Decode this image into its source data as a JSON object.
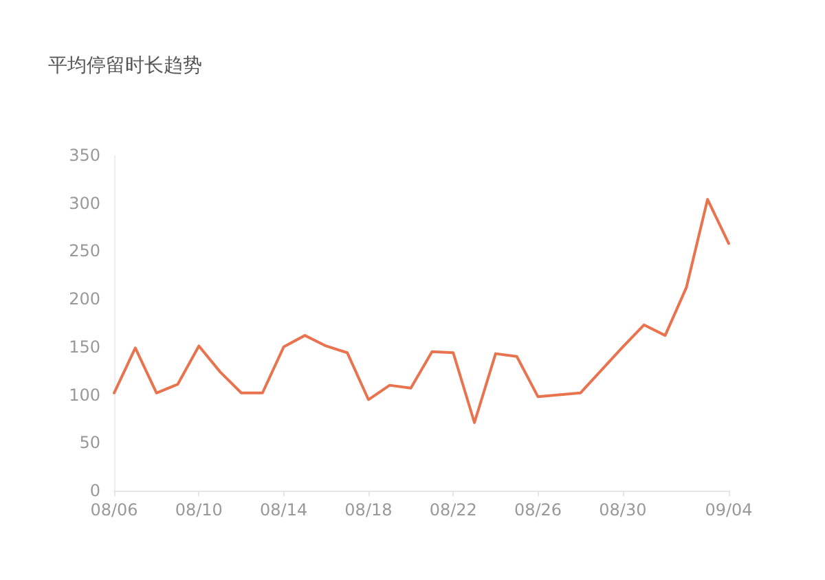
{
  "chart_data": {
    "type": "line",
    "title": "平均停留时长趋势",
    "categories": [
      "08/06",
      null,
      null,
      null,
      "08/10",
      null,
      null,
      null,
      "08/14",
      null,
      null,
      null,
      "08/18",
      null,
      null,
      null,
      "08/22",
      null,
      null,
      null,
      "08/26",
      null,
      null,
      null,
      "08/30",
      null,
      null,
      null,
      null,
      "09/04"
    ],
    "series": [
      {
        "color": "#e8734f",
        "values": [
          102,
          149,
          102,
          111,
          151,
          124,
          102,
          102,
          150,
          162,
          151,
          144,
          95,
          110,
          107,
          145,
          144,
          71,
          143,
          140,
          98,
          100,
          102,
          126,
          150,
          173,
          162,
          212,
          304,
          258
        ]
      }
    ],
    "ylim": [
      0,
      350
    ],
    "yticks": [
      0,
      50,
      100,
      150,
      200,
      250,
      300,
      350
    ],
    "grid": false,
    "marker": "none",
    "line_style": "solid"
  }
}
